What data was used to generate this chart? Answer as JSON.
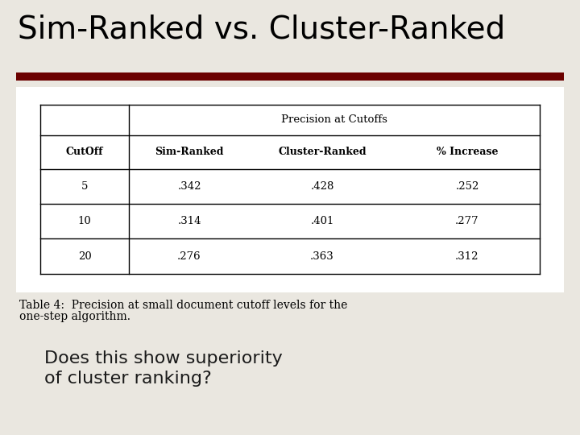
{
  "title": "Sim-Ranked vs. Cluster-Ranked",
  "title_fontsize": 28,
  "bg_color": "#eae7e0",
  "bar_color": "#6b0000",
  "table_bg": "#ffffff",
  "table_header": "Precision at Cutoffs",
  "col_headers": [
    "CutOff",
    "Sim-Ranked",
    "Cluster-Ranked",
    "% Increase"
  ],
  "rows": [
    [
      "5",
      ".342",
      ".428",
      ".252"
    ],
    [
      "10",
      ".314",
      ".401",
      ".277"
    ],
    [
      "20",
      ".276",
      ".363",
      ".312"
    ]
  ],
  "caption_line1": "Table 4:  Precision at small document cutoff levels for the",
  "caption_line2": "one-step algorithm.",
  "caption_fontsize": 10,
  "question_line1": "Does this show superiority",
  "question_line2": "of cluster ranking?",
  "question_fontsize": 16
}
